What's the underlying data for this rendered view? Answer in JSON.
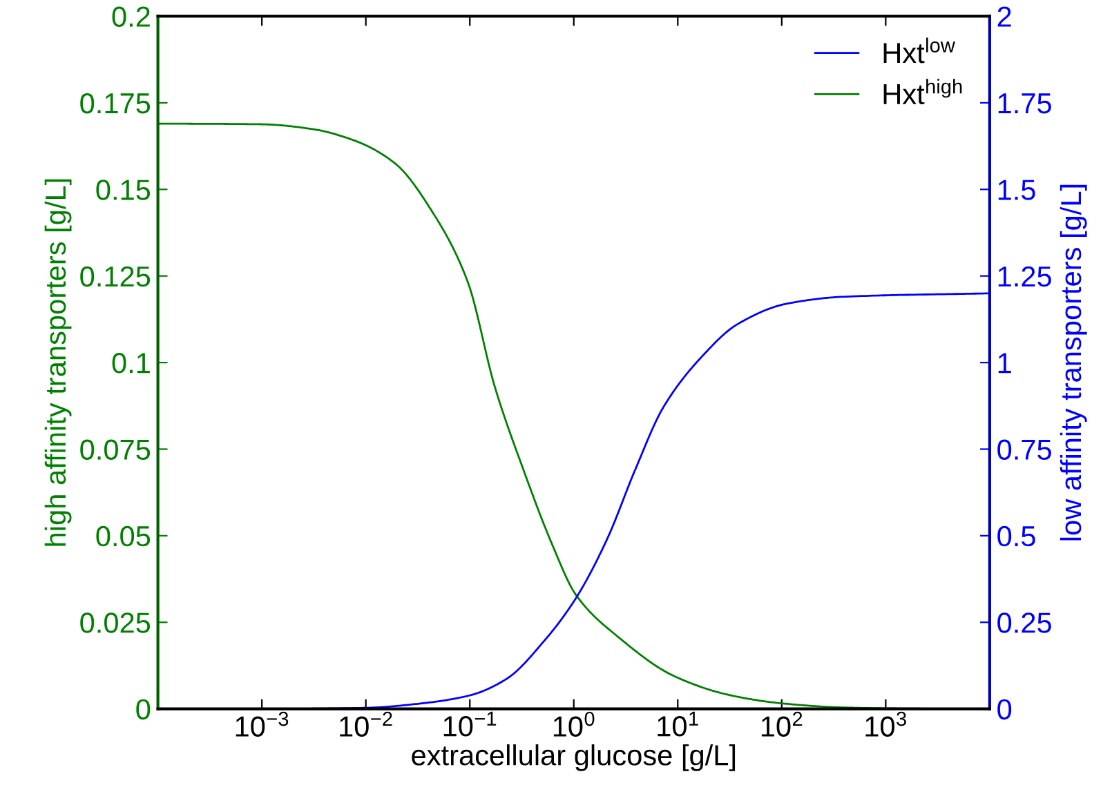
{
  "chart_data": {
    "type": "line",
    "xlabel": "extracellular glucose [g/L]",
    "ylabel": "high affinity transporters [g/L]",
    "y2label": "low affinity transporters [g/L]",
    "log": "x",
    "legend": "top right",
    "grid": false,
    "xlim": [
      0.0001,
      10000
    ],
    "xticks": [
      {
        "value": 0.001,
        "label": "10$^{−3}$"
      },
      {
        "value": 0.01,
        "label": "10$^{−2}$"
      },
      {
        "value": 0.1,
        "label": "10$^{−1}$"
      },
      {
        "value": 1,
        "label": "10$^{0}$"
      },
      {
        "value": 10,
        "label": "10$^{1}$"
      },
      {
        "value": 100,
        "label": "10$^{2}$"
      },
      {
        "value": 1000,
        "label": "10$^{3}$"
      }
    ],
    "ylim": [
      0,
      0.2
    ],
    "yticks": [
      0,
      0.025,
      0.05,
      0.075,
      0.1,
      0.125,
      0.15,
      0.175,
      0.2
    ],
    "y2lim": [
      0,
      2
    ],
    "y2ticks": [
      0,
      0.25,
      0.5,
      0.75,
      1,
      1.25,
      1.5,
      1.75,
      2
    ],
    "series": [
      {
        "name": "Hxt$^{low}$",
        "color": "#0000ff",
        "axis": "y2",
        "x": [
          0.0001,
          0.001,
          0.01,
          0.0347,
          0.1,
          0.224,
          0.525,
          1.05,
          2.09,
          3.89,
          7.24,
          17.4,
          37.2,
          112,
          389,
          10000
        ],
        "values": [
          0,
          0,
          0.003,
          0.016,
          0.039,
          0.086,
          0.198,
          0.32,
          0.49,
          0.69,
          0.87,
          1.02,
          1.11,
          1.17,
          1.19,
          1.2
        ]
      },
      {
        "name": "Hxt$^{high}$",
        "color": "#008000",
        "axis": "y",
        "x": [
          0.0001,
          0.001,
          0.00295,
          0.00794,
          0.0191,
          0.0447,
          0.0955,
          0.174,
          0.331,
          0.617,
          1.05,
          2.69,
          9.33,
          32.4,
          100,
          389,
          1585,
          10000
        ],
        "values": [
          0.169,
          0.1688,
          0.1675,
          0.164,
          0.1575,
          0.143,
          0.1233,
          0.093,
          0.0687,
          0.0476,
          0.0329,
          0.0207,
          0.0094,
          0.0039,
          0.0016,
          0.0004,
          0.0001,
          0
        ]
      }
    ]
  }
}
